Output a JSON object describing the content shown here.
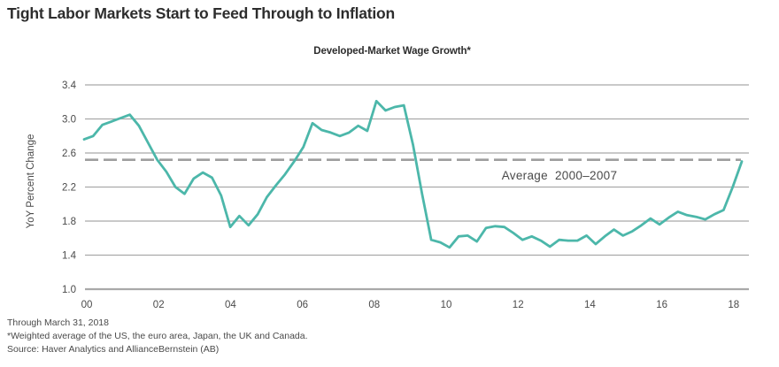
{
  "title": "Tight Labor Markets Start to Feed Through to Inflation",
  "chart": {
    "subtitle": "Developed-Market Wage Growth*",
    "y_axis_title": "YoY Percent Change",
    "average_label": "Average  2000–2007"
  },
  "footnotes": [
    "Through March 31, 2018",
    "*Weighted average of the US, the euro area, Japan, the UK and Canada.",
    "Source: Haver Analytics and AllianceBernstein (AB)"
  ],
  "colors": {
    "title_text": "#2d2d2d",
    "text": "#4a4a4a",
    "grid": "#a9a9a9",
    "dashed": "#9e9e9e",
    "line": "#4cb7aa"
  },
  "chart_data": {
    "type": "line",
    "title": "Developed-Market Wage Growth*",
    "xlabel": "",
    "ylabel": "YoY Percent Change",
    "ylim": [
      1.0,
      3.4
    ],
    "yticks": [
      3.4,
      3.0,
      2.6,
      2.2,
      1.8,
      1.4,
      1.0
    ],
    "xtick_labels": [
      "00",
      "02",
      "04",
      "06",
      "08",
      "10",
      "12",
      "14",
      "16",
      "18"
    ],
    "x_start_year": 2000.0,
    "x_step_years": 0.25,
    "x_range": [
      2000.0,
      2018.25
    ],
    "grid": true,
    "legend_position": "none",
    "average_line": {
      "value": 2.52,
      "label": "Average 2000–2007",
      "period": "2000–2007"
    },
    "series": [
      {
        "name": "Developed-market wage growth (YoY %, quarterly)",
        "values": [
          2.76,
          2.8,
          2.93,
          2.97,
          3.01,
          3.05,
          2.92,
          2.72,
          2.52,
          2.38,
          2.2,
          2.12,
          2.3,
          2.37,
          2.31,
          2.1,
          1.73,
          1.86,
          1.75,
          1.88,
          2.08,
          2.22,
          2.35,
          2.5,
          2.67,
          2.95,
          2.87,
          2.84,
          2.8,
          2.84,
          2.92,
          2.86,
          3.21,
          3.1,
          3.14,
          3.16,
          2.7,
          2.12,
          1.58,
          1.55,
          1.49,
          1.62,
          1.63,
          1.56,
          1.72,
          1.74,
          1.73,
          1.66,
          1.58,
          1.62,
          1.57,
          1.5,
          1.58,
          1.57,
          1.57,
          1.63,
          1.53,
          1.62,
          1.7,
          1.63,
          1.68,
          1.75,
          1.83,
          1.76,
          1.84,
          1.91,
          1.87,
          1.85,
          1.82,
          1.88,
          1.93,
          2.2,
          2.5
        ]
      }
    ]
  }
}
